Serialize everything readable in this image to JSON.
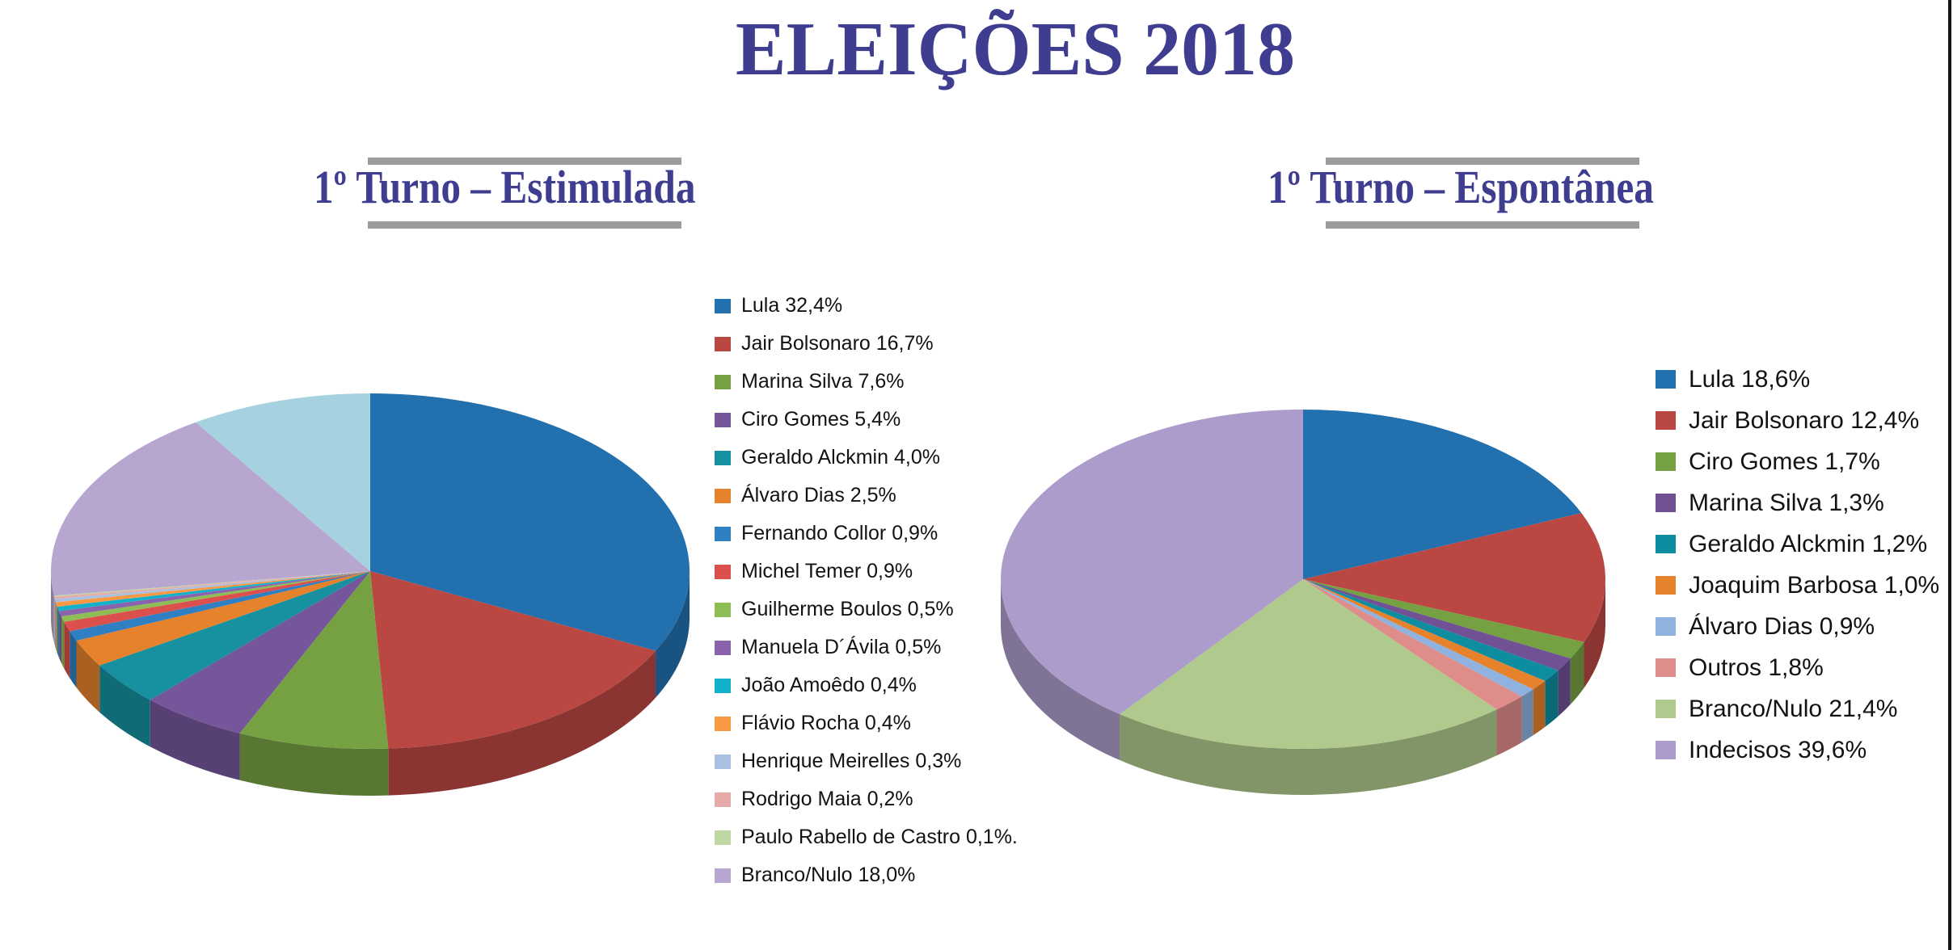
{
  "header": {
    "title": "ELEIÇÕES 2018"
  },
  "theme": {
    "title_color": "#3F3D8F",
    "rule_color": "#9C9C9C",
    "legend_text_color": "#121212",
    "page_background": "#FFFFFF",
    "right_border_color": "#161616"
  },
  "chart_data": [
    {
      "type": "pie",
      "effect": "3d",
      "title": "1º Turno – Estimulada",
      "legend_position": "right",
      "direction": "clockwise",
      "start_angle_deg": 0,
      "units": "percent",
      "slices": [
        {
          "label": "Lula",
          "value": 32.4,
          "legend": "Lula 32,4%",
          "color": "#2270AE"
        },
        {
          "label": "Jair Bolsonaro",
          "value": 16.7,
          "legend": "Jair Bolsonaro 16,7%",
          "color": "#BB4743"
        },
        {
          "label": "Marina Silva",
          "value": 7.6,
          "legend": "Marina Silva 7,6%",
          "color": "#76A143"
        },
        {
          "label": "Ciro Gomes",
          "value": 5.4,
          "legend": "Ciro Gomes 5,4%",
          "color": "#75569B"
        },
        {
          "label": "Geraldo Alckmin",
          "value": 4.0,
          "legend": "Geraldo Alckmin 4,0%",
          "color": "#17909F"
        },
        {
          "label": "Álvaro Dias",
          "value": 2.5,
          "legend": "Álvaro Dias 2,5%",
          "color": "#E5822B"
        },
        {
          "label": "Fernando Collor",
          "value": 0.9,
          "legend": "Fernando Collor 0,9%",
          "color": "#2F7FC3"
        },
        {
          "label": "Michel Temer",
          "value": 0.9,
          "legend": "Michel Temer 0,9%",
          "color": "#DB504C"
        },
        {
          "label": "Guilherme Boulos",
          "value": 0.5,
          "legend": "Guilherme Boulos 0,5%",
          "color": "#8FBD55"
        },
        {
          "label": "Manuela D´Ávila",
          "value": 0.5,
          "legend": "Manuela D´Ávila 0,5%",
          "color": "#8964AC"
        },
        {
          "label": "João Amoêdo",
          "value": 0.4,
          "legend": "João Amoêdo 0,4%",
          "color": "#12B0CA"
        },
        {
          "label": "Flávio Rocha",
          "value": 0.4,
          "legend": "Flávio Rocha 0,4%",
          "color": "#F99944"
        },
        {
          "label": "Henrique Meirelles",
          "value": 0.3,
          "legend": "Henrique Meirelles 0,3%",
          "color": "#AAC0E1"
        },
        {
          "label": "Rodrigo Maia",
          "value": 0.2,
          "legend": "Rodrigo Maia 0,2%",
          "color": "#E6AAA8"
        },
        {
          "label": "Paulo Rabello de Castro",
          "value": 0.1,
          "legend": "Paulo Rabello de Castro 0,1%.",
          "color": "#BED7A3"
        },
        {
          "label": "Branco/Nulo",
          "value": 18.0,
          "legend": "Branco/Nulo 18,0%",
          "color": "#B6A6D0"
        }
      ],
      "unlabeled_slice": {
        "value": 9.2,
        "color": "#A6D2DF"
      }
    },
    {
      "type": "pie",
      "effect": "3d",
      "title": "1º Turno – Espontânea",
      "legend_position": "right",
      "direction": "clockwise",
      "start_angle_deg": 0,
      "units": "percent",
      "slices": [
        {
          "label": "Lula",
          "value": 18.6,
          "legend": "Lula 18,6%",
          "color": "#2270AE"
        },
        {
          "label": "Jair Bolsonaro",
          "value": 12.4,
          "legend": "Jair Bolsonaro 12,4%",
          "color": "#BB4743"
        },
        {
          "label": "Ciro Gomes",
          "value": 1.7,
          "legend": "Ciro Gomes 1,7%",
          "color": "#76A143"
        },
        {
          "label": "Marina Silva",
          "value": 1.3,
          "legend": "Marina Silva 1,3%",
          "color": "#6F5194"
        },
        {
          "label": "Geraldo Alckmin",
          "value": 1.2,
          "legend": "Geraldo Alckmin 1,2%",
          "color": "#0F8DA0"
        },
        {
          "label": "Joaquim Barbosa",
          "value": 1.0,
          "legend": "Joaquim Barbosa 1,0%",
          "color": "#E5822B"
        },
        {
          "label": "Álvaro Dias",
          "value": 0.9,
          "legend": "Álvaro Dias 0,9%",
          "color": "#8FB2DE"
        },
        {
          "label": "Outros",
          "value": 1.8,
          "legend": "Outros 1,8%",
          "color": "#DF8D8A"
        },
        {
          "label": "Branco/Nulo",
          "value": 21.4,
          "legend": "Branco/Nulo 21,4%",
          "color": "#AFCA8C"
        },
        {
          "label": "Indecisos",
          "value": 39.6,
          "legend": "Indecisos 39,6%",
          "color": "#AB9CCB"
        }
      ]
    }
  ]
}
